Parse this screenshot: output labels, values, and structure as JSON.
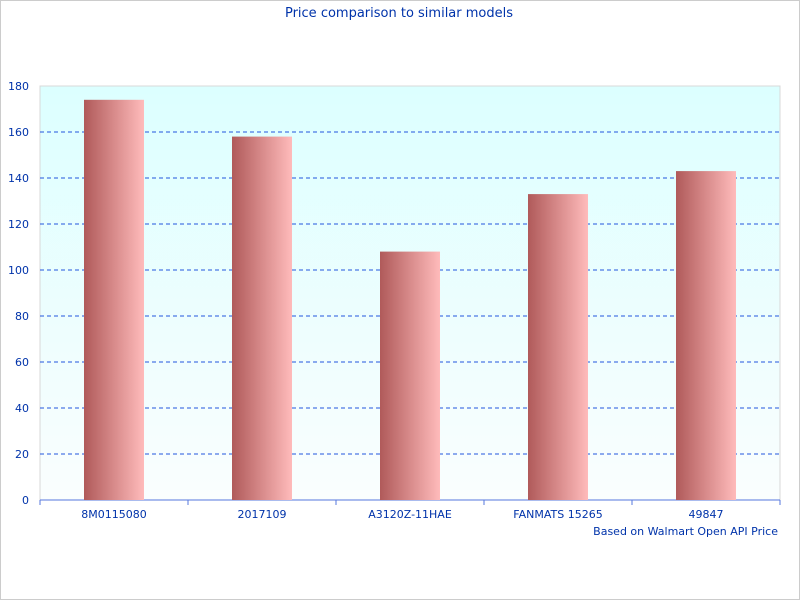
{
  "chart_data": {
    "type": "bar",
    "title": "Price comparison to similar models",
    "xlabel": "Based on Walmart Open API Price",
    "ylabel": "",
    "categories": [
      "8M0115080",
      "2017109",
      "A3120Z-11HAE",
      "FANMATS 15265",
      "49847"
    ],
    "values": [
      174,
      158,
      108,
      133,
      143
    ],
    "ylim": [
      0,
      180
    ],
    "yticks": [
      0,
      20,
      40,
      60,
      80,
      100,
      120,
      140,
      160,
      180
    ],
    "grid": true,
    "legend": "none",
    "colors": {
      "bar_dark": "#b05a5a",
      "bar_light": "#ffbbbb",
      "text": "#0033aa",
      "grid": "#2255dd",
      "plot_top": "#dcffff",
      "plot_bottom": "#fafefe"
    }
  }
}
